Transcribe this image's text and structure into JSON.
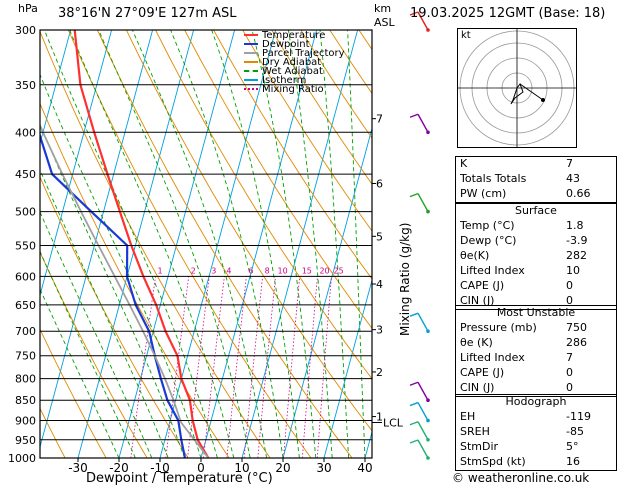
{
  "header": {
    "location": "38°16'N  27°09'E  127m  ASL",
    "datetime": "19.03.2025  12GMT  (Base: 18)",
    "left_unit": "hPa",
    "right_unit_1": "km",
    "right_unit_2": "ASL"
  },
  "footer": {
    "credit": "© weatheronline.co.uk"
  },
  "colors": {
    "temperature": "#ff3030",
    "dewpoint": "#1a3ad8",
    "parcel": "#a0a0a0",
    "dry_adiabat": "#e08a00",
    "wet_adiabat": "#00a000",
    "isotherm": "#00a0e0",
    "mixing_ratio": "#d0008a"
  },
  "chart_data": {
    "type": "line",
    "title": "",
    "xlabel": "Dewpoint / Temperature (°C)",
    "ylabel": "hPa",
    "y2label": "Mixing Ratio (g/kg)",
    "xlim": [
      -40,
      40
    ],
    "ylim": [
      1000,
      300
    ],
    "x_ticks": [
      "-30",
      "-20",
      "-10",
      "0",
      "10",
      "20",
      "30",
      "40"
    ],
    "pressure_levels": [
      300,
      350,
      400,
      450,
      500,
      550,
      600,
      650,
      700,
      750,
      800,
      850,
      900,
      950,
      1000
    ],
    "km_labels": [
      {
        "p": 385,
        "label": "7"
      },
      {
        "p": 462,
        "label": "6"
      },
      {
        "p": 536,
        "label": "5"
      },
      {
        "p": 613,
        "label": "4"
      },
      {
        "p": 697,
        "label": "3"
      },
      {
        "p": 785,
        "label": "2"
      },
      {
        "p": 890,
        "label": "1"
      }
    ],
    "lcl_label": "LCL",
    "lcl_p": 905,
    "mixing_ratio_labels": [
      "1",
      "2",
      "3",
      "4",
      "6",
      "8",
      "10",
      "15",
      "20",
      "25"
    ],
    "legend": [
      "Temperature",
      "Dewpoint",
      "Parcel Trajectory",
      "Dry Adiabat",
      "Wet Adiabat",
      "Isotherm",
      "Mixing Ratio"
    ],
    "series": [
      {
        "name": "Temperature",
        "points": [
          [
            1000,
            1.8
          ],
          [
            950,
            -2
          ],
          [
            900,
            -4.5
          ],
          [
            850,
            -6.5
          ],
          [
            800,
            -10
          ],
          [
            750,
            -12.5
          ],
          [
            700,
            -17
          ],
          [
            650,
            -21
          ],
          [
            600,
            -26
          ],
          [
            550,
            -31
          ],
          [
            500,
            -36
          ],
          [
            450,
            -41.5
          ],
          [
            400,
            -47.5
          ],
          [
            350,
            -54
          ],
          [
            300,
            -59
          ]
        ]
      },
      {
        "name": "Dewpoint",
        "points": [
          [
            1000,
            -3.9
          ],
          [
            950,
            -6
          ],
          [
            900,
            -8
          ],
          [
            850,
            -12
          ],
          [
            800,
            -15
          ],
          [
            750,
            -18
          ],
          [
            700,
            -21
          ],
          [
            650,
            -26
          ],
          [
            600,
            -30
          ],
          [
            550,
            -32
          ],
          [
            500,
            -43
          ],
          [
            450,
            -55
          ],
          [
            400,
            -61
          ],
          [
            350,
            -64
          ],
          [
            300,
            -70
          ]
        ]
      },
      {
        "name": "Parcel Trajectory",
        "points": [
          [
            1000,
            1.8
          ],
          [
            950,
            -2.8
          ],
          [
            905,
            -7.2
          ],
          [
            850,
            -10.5
          ],
          [
            800,
            -14
          ],
          [
            750,
            -18
          ],
          [
            700,
            -22.5
          ],
          [
            650,
            -27.5
          ],
          [
            600,
            -33
          ],
          [
            550,
            -39
          ],
          [
            500,
            -45.5
          ],
          [
            450,
            -52.5
          ],
          [
            400,
            -60
          ],
          [
            350,
            -68
          ],
          [
            300,
            -76
          ]
        ]
      }
    ]
  },
  "hodograph": {
    "label": "kt"
  },
  "indices": {
    "k": {
      "label": "K",
      "value": "7"
    },
    "tt": {
      "label": "Totals Totals",
      "value": "43"
    },
    "pw": {
      "label": "PW (cm)",
      "value": "0.66"
    }
  },
  "surface": {
    "title": "Surface",
    "rows": [
      {
        "label": "Temp (°C)",
        "value": "1.8"
      },
      {
        "label": "Dewp (°C)",
        "value": "-3.9"
      },
      {
        "label": "θe(K)",
        "value": "282"
      },
      {
        "label": "Lifted Index",
        "value": "10"
      },
      {
        "label": "CAPE (J)",
        "value": "0"
      },
      {
        "label": "CIN (J)",
        "value": "0"
      }
    ]
  },
  "most_unstable": {
    "title": "Most Unstable",
    "rows": [
      {
        "label": "Pressure (mb)",
        "value": "750"
      },
      {
        "label": "θe (K)",
        "value": "286"
      },
      {
        "label": "Lifted Index",
        "value": "7"
      },
      {
        "label": "CAPE (J)",
        "value": "0"
      },
      {
        "label": "CIN (J)",
        "value": "0"
      }
    ]
  },
  "hodograph_table": {
    "title": "Hodograph",
    "rows": [
      {
        "label": "EH",
        "value": "-119"
      },
      {
        "label": "SREH",
        "value": "-85"
      },
      {
        "label": "StmDir",
        "value": "5°"
      },
      {
        "label": "StmSpd (kt)",
        "value": "16"
      }
    ]
  }
}
